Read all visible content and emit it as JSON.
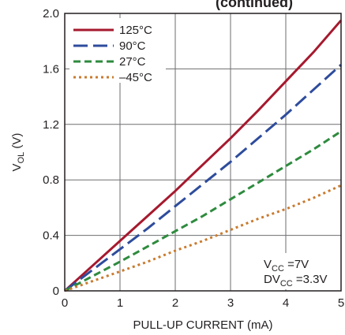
{
  "chart_data": {
    "type": "line",
    "title_fragment": "(continued)",
    "xlabel": "PULL-UP CURRENT (mA)",
    "ylabel": {
      "main": "V",
      "sub": "OL",
      "rest": " (V)"
    },
    "xlim": [
      0,
      5
    ],
    "ylim": [
      0,
      2.0
    ],
    "x_ticks": [
      "0",
      "1",
      "2",
      "3",
      "4",
      "5"
    ],
    "y_ticks": [
      "0",
      "0.4",
      "0.8",
      "1.2",
      "1.6",
      "2.0"
    ],
    "grid": true,
    "legend_position": "top-left",
    "annotations": [
      {
        "main": "V",
        "sub": "CC",
        "rest": " =7V"
      },
      {
        "main": "DV",
        "sub": "CC",
        "rest": " =3.3V"
      }
    ],
    "series": [
      {
        "name": "125°C",
        "color": "#a6192e",
        "dash": "solid",
        "x": [
          0,
          0.5,
          1,
          1.5,
          2,
          2.5,
          3,
          3.5,
          4,
          4.5,
          5
        ],
        "y": [
          0,
          0.18,
          0.36,
          0.54,
          0.72,
          0.91,
          1.1,
          1.3,
          1.51,
          1.72,
          1.95
        ]
      },
      {
        "name": "90°C",
        "color": "#2e4c9c",
        "dash": "long-dash",
        "x": [
          0,
          0.5,
          1,
          1.5,
          2,
          2.5,
          3,
          3.5,
          4,
          4.5,
          5
        ],
        "y": [
          0,
          0.15,
          0.3,
          0.45,
          0.61,
          0.77,
          0.93,
          1.1,
          1.27,
          1.45,
          1.63
        ]
      },
      {
        "name": "27°C",
        "color": "#2e8b3e",
        "dash": "dash",
        "x": [
          0,
          0.5,
          1,
          1.5,
          2,
          2.5,
          3,
          3.5,
          4,
          4.5,
          5
        ],
        "y": [
          0,
          0.105,
          0.21,
          0.32,
          0.43,
          0.54,
          0.66,
          0.78,
          0.9,
          1.02,
          1.15
        ]
      },
      {
        "name": "–45°C",
        "color": "#c97b2f",
        "dash": "dot",
        "x": [
          0,
          0.5,
          1,
          1.5,
          2,
          2.5,
          3,
          3.5,
          4,
          4.5,
          5
        ],
        "y": [
          0,
          0.07,
          0.14,
          0.21,
          0.29,
          0.36,
          0.44,
          0.52,
          0.59,
          0.67,
          0.76
        ]
      }
    ]
  }
}
